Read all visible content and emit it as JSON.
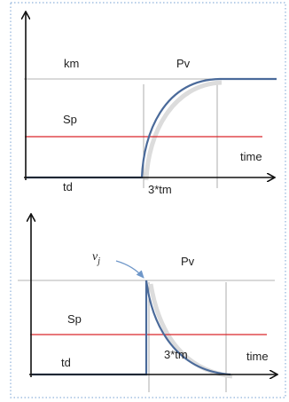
{
  "colors": {
    "axis": "#111111",
    "response_curve": "#4a6a9a",
    "setpoint": "#d9262b",
    "reference": "#9a9a9a",
    "shadow": "#dcdcdc",
    "arrow_callout": "#6f97c9",
    "frame_dots": "#8fb2da"
  },
  "panels": [
    {
      "name": "growth",
      "labels": {
        "km": "km",
        "pv": "Pv",
        "sp": "Sp",
        "time": "time",
        "td": "td",
        "tm": "3*tm"
      }
    },
    {
      "name": "decay",
      "labels": {
        "vj": "vj",
        "pv": "Pv",
        "sp": "Sp",
        "time": "time",
        "td": "td",
        "tm": "3*tm"
      }
    }
  ]
}
